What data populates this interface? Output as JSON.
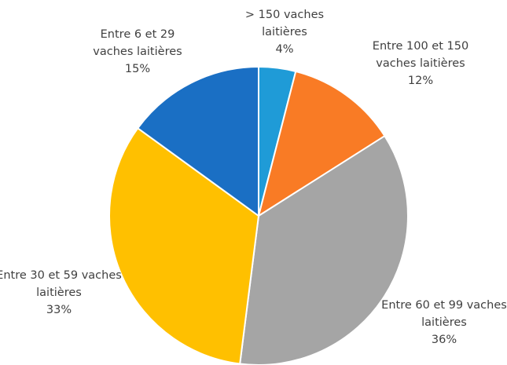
{
  "chart_data": {
    "type": "pie",
    "categories": [
      "> 150 vaches laitières",
      "Entre 100 et 150 vaches laitières",
      "Entre 60 et 99 vaches laitières",
      "Entre 30 et 59 vaches laitières",
      "Entre 6 et 29 vaches laitières"
    ],
    "values": [
      4,
      12,
      36,
      33,
      15
    ],
    "value_labels": [
      "4%",
      "12%",
      "36%",
      "33%",
      "15%"
    ],
    "colors": [
      "#1f9bd7",
      "#f97b25",
      "#a5a5a5",
      "#ffc000",
      "#1a6fc4"
    ]
  }
}
